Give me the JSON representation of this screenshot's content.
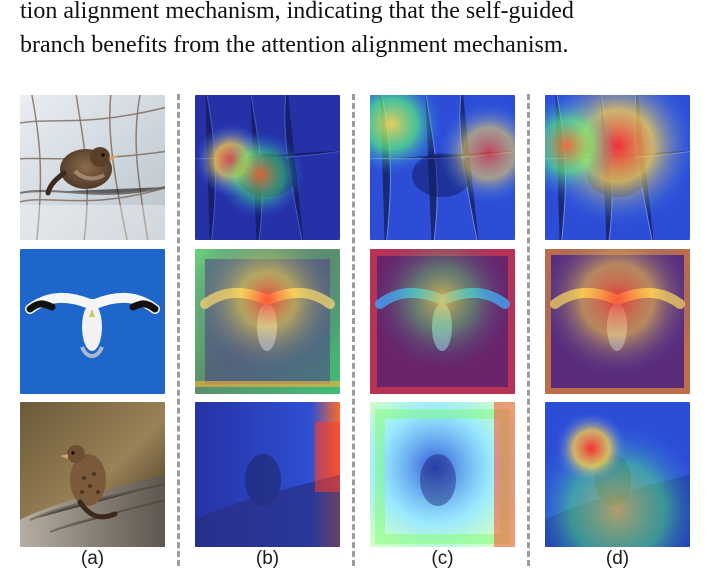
{
  "text": {
    "line1": "tion alignment mechanism, indicating that the self-guided",
    "line2": "branch benefits from the attention alignment mechanism."
  },
  "labels": [
    "(a)",
    "(b)",
    "(c)",
    "(d)"
  ]
}
